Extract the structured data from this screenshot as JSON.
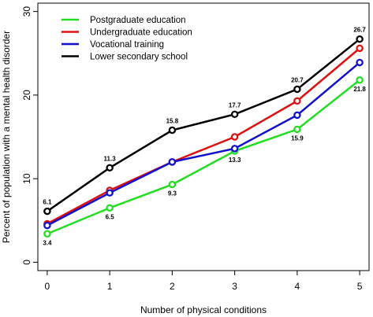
{
  "chart_data": {
    "type": "line",
    "xlabel": "Number of physical conditions",
    "ylabel": "Percent of population with a mental health disorder",
    "x": [
      0,
      1,
      2,
      3,
      4,
      5
    ],
    "xlim": [
      -0.15,
      5.15
    ],
    "ylim": [
      -1,
      31
    ],
    "yticks": [
      0,
      10,
      20,
      30
    ],
    "grid": false,
    "legend_position": "top-left",
    "series": [
      {
        "name": "Postgraduate education",
        "color": "#22dd22",
        "values": [
          3.4,
          6.5,
          9.3,
          13.3,
          15.9,
          21.8
        ],
        "labels": [
          "3.4",
          "6.5",
          "9.3",
          "13.3",
          "15.9",
          "21.8"
        ]
      },
      {
        "name": "Undergraduate education",
        "color": "#dd1111",
        "values": [
          4.6,
          8.6,
          12.0,
          15.0,
          19.3,
          25.6
        ],
        "labels": []
      },
      {
        "name": "Vocational training",
        "color": "#1111cc",
        "values": [
          4.4,
          8.3,
          12.0,
          13.6,
          17.6,
          23.9
        ],
        "labels": []
      },
      {
        "name": "Lower secondary school",
        "color": "#000000",
        "values": [
          6.1,
          11.3,
          15.8,
          17.7,
          20.7,
          26.7
        ],
        "labels": [
          "6.1",
          "11.3",
          "15.8",
          "17.7",
          "20.7",
          "26.7"
        ]
      }
    ]
  }
}
